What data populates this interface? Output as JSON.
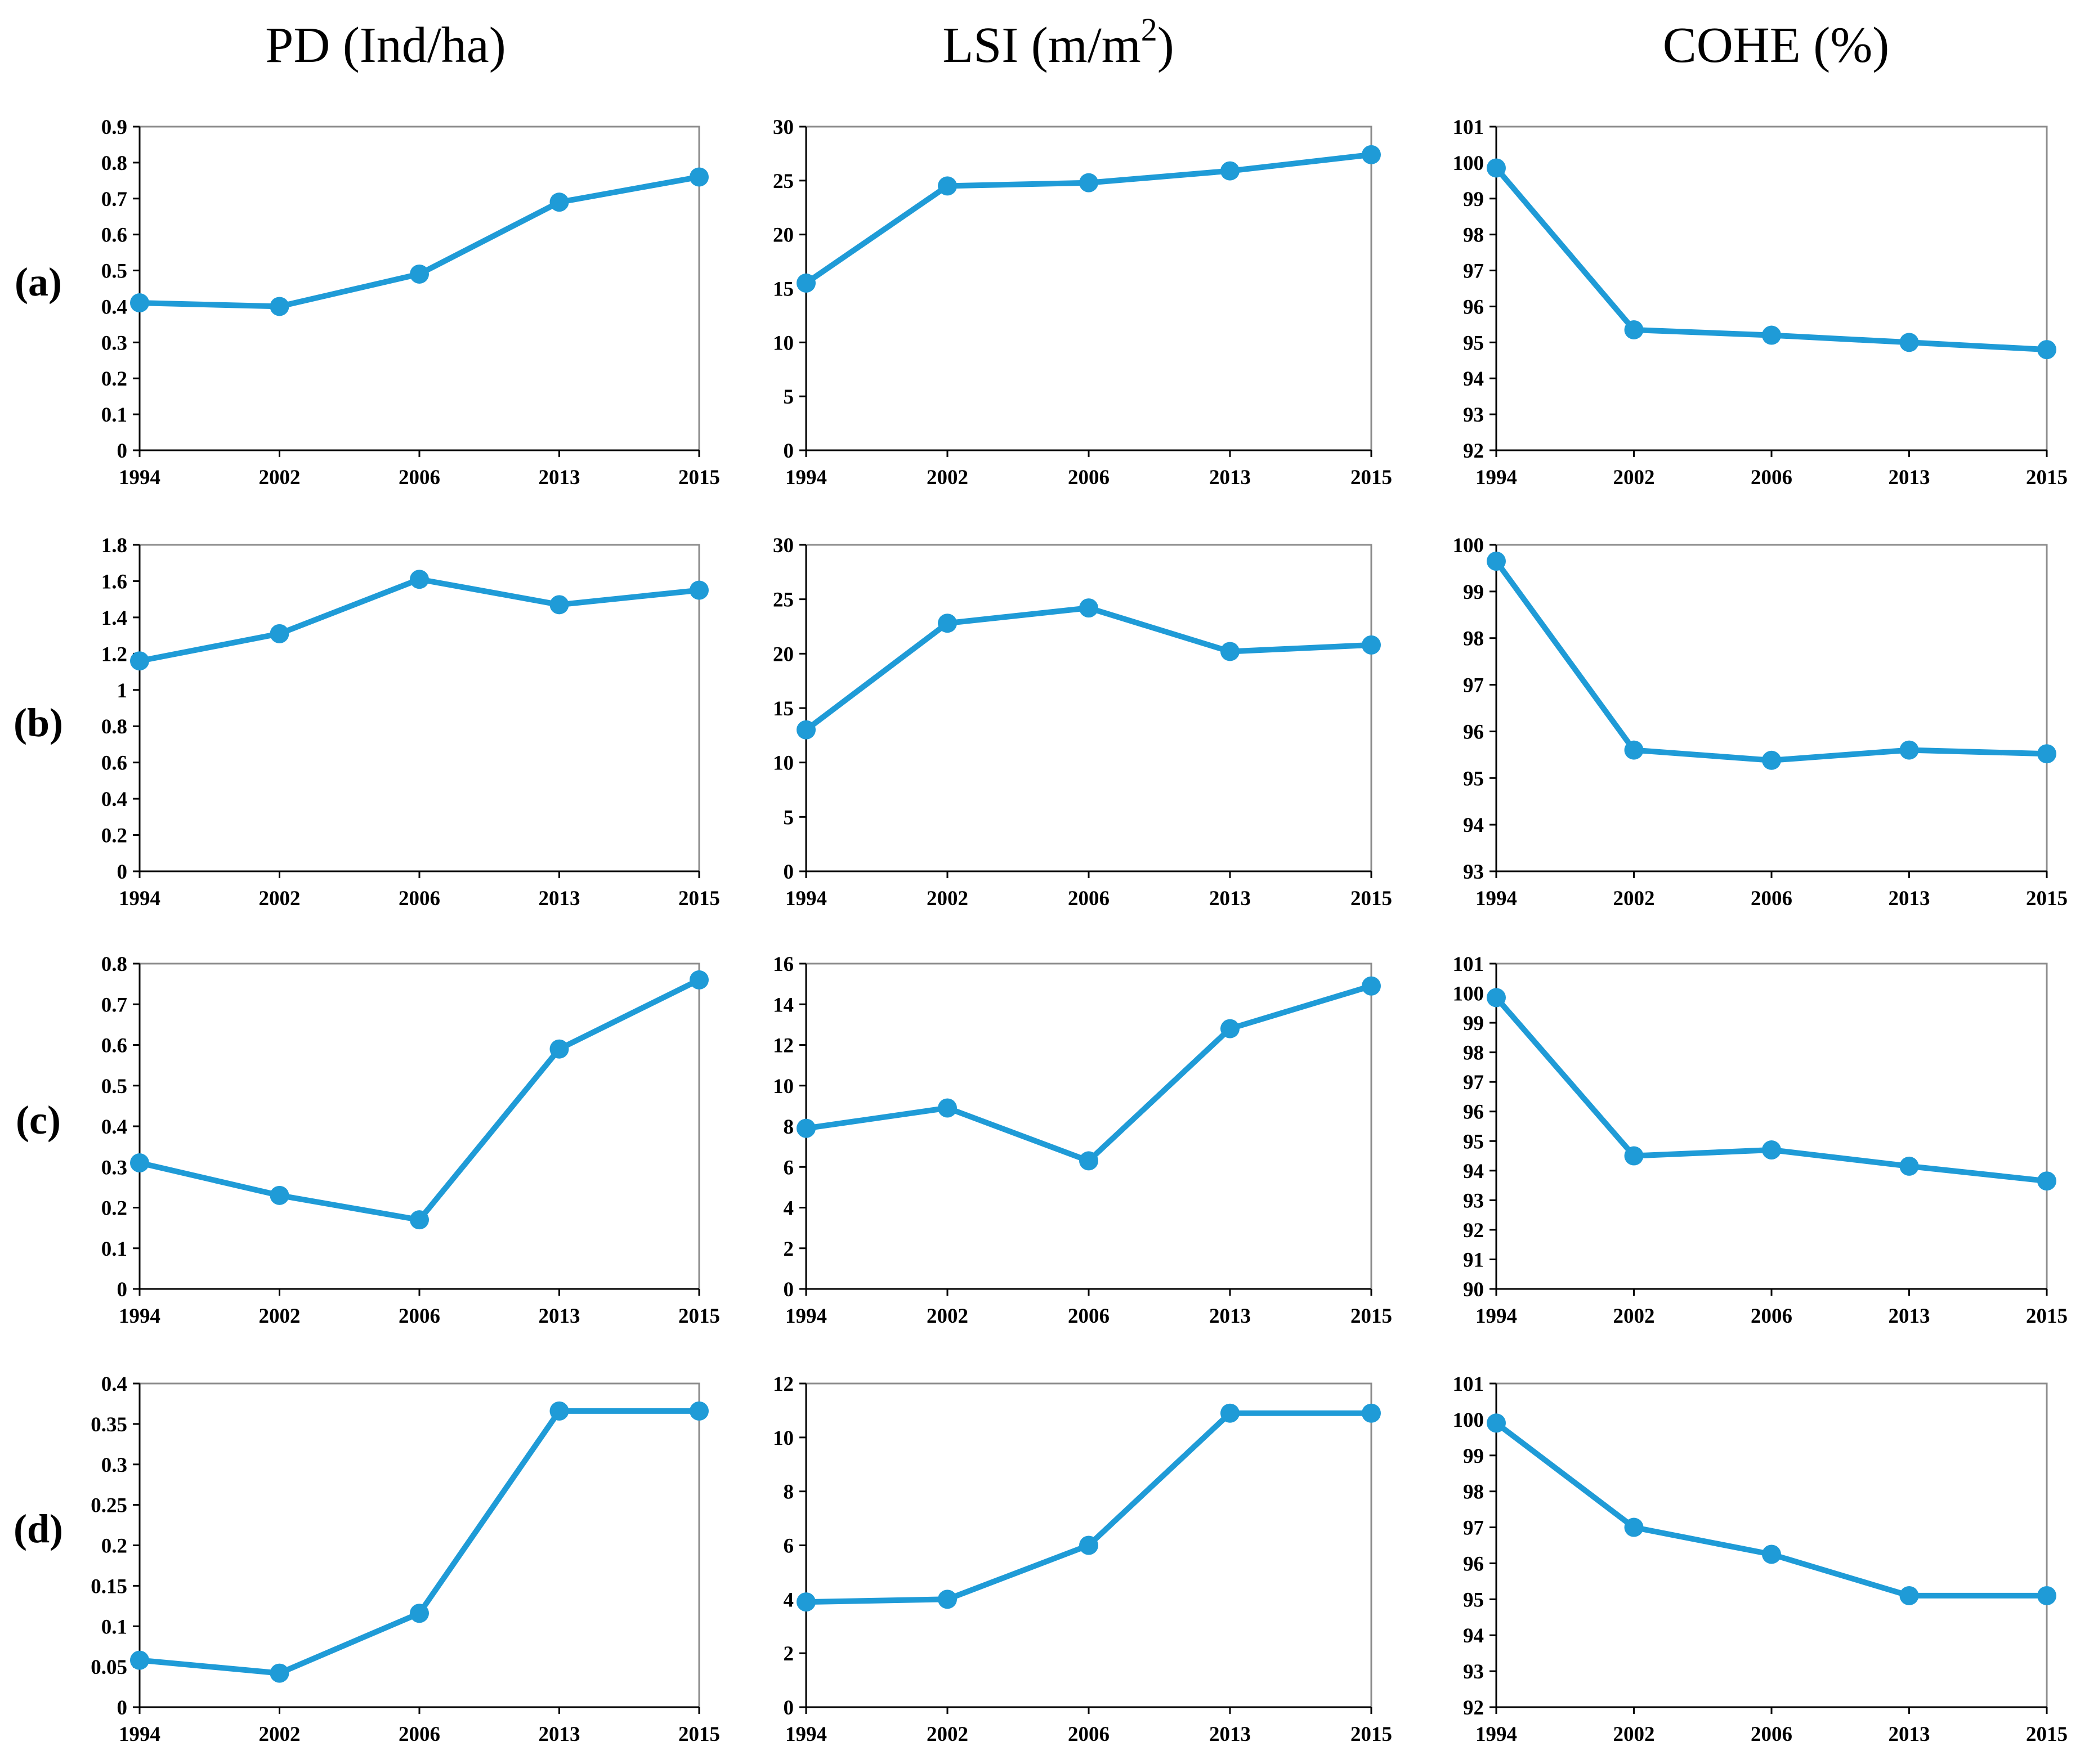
{
  "figure": {
    "column_titles": [
      "PD (Ind/ha)",
      "LSI (m/m",
      "COHE (%)"
    ],
    "lsi_superscript": "2",
    "row_labels": [
      "(a)",
      "(b)",
      "(c)",
      "(d)"
    ]
  },
  "colors": {
    "series": "#1f9bd7",
    "frame": "#8c8c8c",
    "axis": "#000000"
  },
  "chart_data": [
    {
      "id": "a-pd",
      "type": "line",
      "row": "(a)",
      "ylabel": "PD (Ind/ha)",
      "categories": [
        "1994",
        "2002",
        "2006",
        "2013",
        "2015"
      ],
      "values": [
        0.41,
        0.4,
        0.49,
        0.69,
        0.76
      ],
      "ylim": [
        0,
        0.9
      ],
      "yticks": [
        "0",
        "0.1",
        "0.2",
        "0.3",
        "0.4",
        "0.5",
        "0.6",
        "0.7",
        "0.8",
        "0.9"
      ],
      "grid": false
    },
    {
      "id": "a-lsi",
      "type": "line",
      "row": "(a)",
      "ylabel": "LSI (m/m2)",
      "categories": [
        "1994",
        "2002",
        "2006",
        "2013",
        "2015"
      ],
      "values": [
        15.5,
        24.5,
        24.8,
        25.9,
        27.4
      ],
      "ylim": [
        0,
        30
      ],
      "yticks": [
        "0",
        "5",
        "10",
        "15",
        "20",
        "25",
        "30"
      ],
      "grid": false
    },
    {
      "id": "a-cohe",
      "type": "line",
      "row": "(a)",
      "ylabel": "COHE (%)",
      "categories": [
        "1994",
        "2002",
        "2006",
        "2013",
        "2015"
      ],
      "values": [
        99.85,
        95.35,
        95.2,
        95.0,
        94.8
      ],
      "ylim": [
        92,
        101
      ],
      "yticks": [
        "92",
        "93",
        "94",
        "95",
        "96",
        "97",
        "98",
        "99",
        "100",
        "101"
      ],
      "grid": false
    },
    {
      "id": "b-pd",
      "type": "line",
      "row": "(b)",
      "ylabel": "PD (Ind/ha)",
      "categories": [
        "1994",
        "2002",
        "2006",
        "2013",
        "2015"
      ],
      "values": [
        1.16,
        1.31,
        1.61,
        1.47,
        1.55
      ],
      "ylim": [
        0,
        1.8
      ],
      "yticks": [
        "0",
        "0.2",
        "0.4",
        "0.6",
        "0.8",
        "1",
        "1.2",
        "1.4",
        "1.6",
        "1.8"
      ],
      "grid": false
    },
    {
      "id": "b-lsi",
      "type": "line",
      "row": "(b)",
      "ylabel": "LSI (m/m2)",
      "categories": [
        "1994",
        "2002",
        "2006",
        "2013",
        "2015"
      ],
      "values": [
        13.0,
        22.8,
        24.2,
        20.2,
        20.8
      ],
      "ylim": [
        0,
        30
      ],
      "yticks": [
        "0",
        "5",
        "10",
        "15",
        "20",
        "25",
        "30"
      ],
      "grid": false
    },
    {
      "id": "b-cohe",
      "type": "line",
      "row": "(b)",
      "ylabel": "COHE (%)",
      "categories": [
        "1994",
        "2002",
        "2006",
        "2013",
        "2015"
      ],
      "values": [
        99.65,
        95.6,
        95.38,
        95.6,
        95.52
      ],
      "ylim": [
        93,
        100
      ],
      "yticks": [
        "93",
        "94",
        "95",
        "96",
        "97",
        "98",
        "99",
        "100"
      ],
      "grid": false
    },
    {
      "id": "c-pd",
      "type": "line",
      "row": "(c)",
      "ylabel": "PD (Ind/ha)",
      "categories": [
        "1994",
        "2002",
        "2006",
        "2013",
        "2015"
      ],
      "values": [
        0.31,
        0.23,
        0.17,
        0.59,
        0.76
      ],
      "ylim": [
        0,
        0.8
      ],
      "yticks": [
        "0",
        "0.1",
        "0.2",
        "0.3",
        "0.4",
        "0.5",
        "0.6",
        "0.7",
        "0.8"
      ],
      "grid": false
    },
    {
      "id": "c-lsi",
      "type": "line",
      "row": "(c)",
      "ylabel": "LSI (m/m2)",
      "categories": [
        "1994",
        "2002",
        "2006",
        "2013",
        "2015"
      ],
      "values": [
        7.9,
        8.9,
        6.3,
        12.8,
        14.9
      ],
      "ylim": [
        0,
        16
      ],
      "yticks": [
        "0",
        "2",
        "4",
        "6",
        "8",
        "10",
        "12",
        "14",
        "16"
      ],
      "grid": false
    },
    {
      "id": "c-cohe",
      "type": "line",
      "row": "(c)",
      "ylabel": "COHE (%)",
      "categories": [
        "1994",
        "2002",
        "2006",
        "2013",
        "2015"
      ],
      "values": [
        99.85,
        94.5,
        94.7,
        94.15,
        93.65
      ],
      "ylim": [
        90,
        101
      ],
      "yticks": [
        "90",
        "91",
        "92",
        "93",
        "94",
        "95",
        "96",
        "97",
        "98",
        "99",
        "100",
        "101"
      ],
      "grid": false
    },
    {
      "id": "d-pd",
      "type": "line",
      "row": "(d)",
      "ylabel": "PD (Ind/ha)",
      "categories": [
        "1994",
        "2002",
        "2006",
        "2013",
        "2015"
      ],
      "values": [
        0.058,
        0.042,
        0.116,
        0.366,
        0.366
      ],
      "ylim": [
        0,
        0.4
      ],
      "yticks": [
        "0",
        "0.05",
        "0.1",
        "0.15",
        "0.2",
        "0.25",
        "0.3",
        "0.35",
        "0.4"
      ],
      "grid": false
    },
    {
      "id": "d-lsi",
      "type": "line",
      "row": "(d)",
      "ylabel": "LSI (m/m2)",
      "categories": [
        "1994",
        "2002",
        "2006",
        "2013",
        "2015"
      ],
      "values": [
        3.9,
        4.0,
        6.0,
        10.9,
        10.9
      ],
      "ylim": [
        0,
        12
      ],
      "yticks": [
        "0",
        "2",
        "4",
        "6",
        "8",
        "10",
        "12"
      ],
      "grid": false
    },
    {
      "id": "d-cohe",
      "type": "line",
      "row": "(d)",
      "ylabel": "COHE (%)",
      "categories": [
        "1994",
        "2002",
        "2006",
        "2013",
        "2015"
      ],
      "values": [
        99.9,
        97.0,
        96.25,
        95.1,
        95.1
      ],
      "ylim": [
        92,
        101
      ],
      "yticks": [
        "92",
        "93",
        "94",
        "95",
        "96",
        "97",
        "98",
        "99",
        "100",
        "101"
      ],
      "grid": false
    }
  ]
}
